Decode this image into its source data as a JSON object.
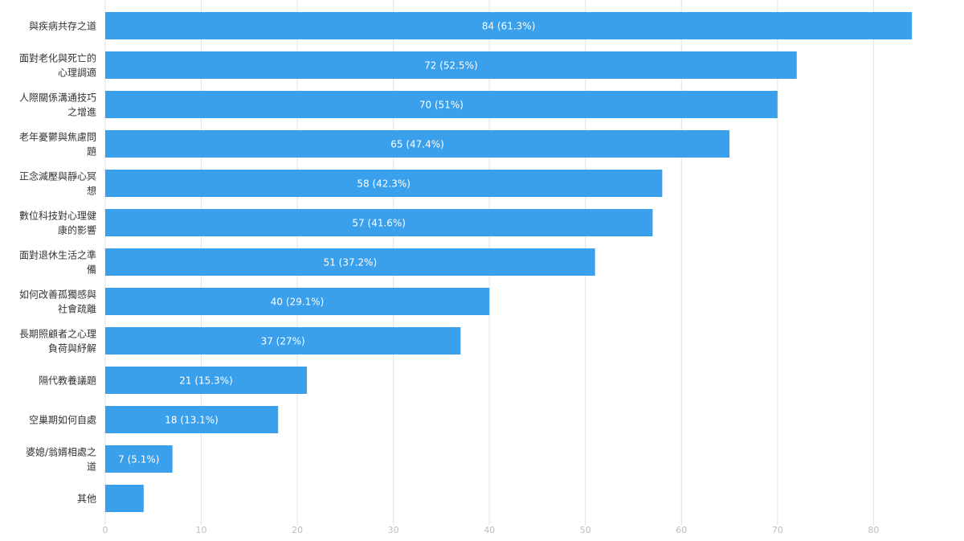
{
  "chart_data": {
    "type": "bar",
    "orientation": "horizontal",
    "categories": [
      "與疾病共存之道",
      "面對老化與死亡的心理調適",
      "人際關係溝通技巧之增進",
      "老年憂鬱與焦慮問題",
      "正念減壓與靜心冥想",
      "數位科技對心理健康的影響",
      "面對退休生活之準備",
      "如何改善孤獨感與社會疏離",
      "長期照顧者之心理負荷與紓解",
      "隔代教養議題",
      "空巢期如何自處",
      "婆媳/翁婿相處之道",
      "其他"
    ],
    "category_lines": [
      [
        "與疾病共存之道"
      ],
      [
        "面對老化與死亡的",
        "心理調適"
      ],
      [
        "人際關係溝通技巧",
        "之增進"
      ],
      [
        "老年憂鬱與焦慮問",
        "題"
      ],
      [
        "正念減壓與靜心冥",
        "想"
      ],
      [
        "數位科技對心理健",
        "康的影響"
      ],
      [
        "面對退休生活之準",
        "備"
      ],
      [
        "如何改善孤獨感與",
        "社會疏離"
      ],
      [
        "長期照顧者之心理",
        "負荷與紓解"
      ],
      [
        "隔代教養議題"
      ],
      [
        "空巢期如何自處"
      ],
      [
        "婆媳/翁婿相處之",
        "道"
      ],
      [
        "其他"
      ]
    ],
    "values": [
      84,
      72,
      70,
      65,
      58,
      57,
      51,
      40,
      37,
      21,
      18,
      7,
      4
    ],
    "data_labels": [
      "84 (61.3%)",
      "72 (52.5%)",
      "70 (51%)",
      "65 (47.4%)",
      "58 (42.3%)",
      "57 (41.6%)",
      "51 (37.2%)",
      "40 (29.1%)",
      "37 (27%)",
      "21 (15.3%)",
      "18 (13.1%)",
      "7 (5.1%)",
      ""
    ],
    "xlim": [
      0,
      89
    ],
    "xticks": [
      0,
      10,
      20,
      30,
      40,
      50,
      60,
      70,
      80
    ],
    "grid": true,
    "legend": "none",
    "title": "",
    "xlabel": "",
    "ylabel": "",
    "colors": {
      "bar": "#3aa0ec",
      "grid": "#e3e3e3",
      "label_text": "#ffffff",
      "category_text": "#333333",
      "tick_text": "#bdbdbd"
    }
  }
}
